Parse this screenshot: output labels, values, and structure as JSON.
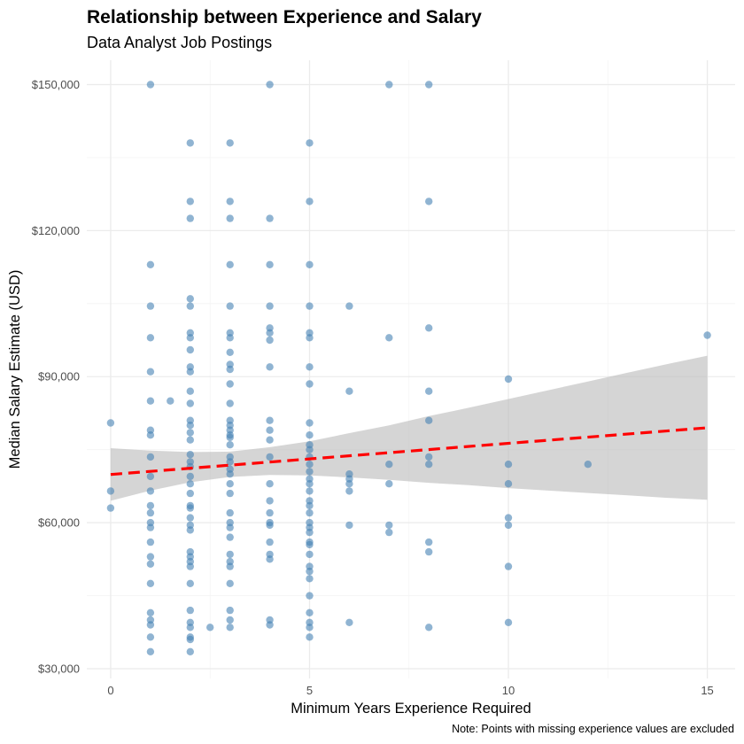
{
  "chart_data": {
    "type": "scatter",
    "title": "Relationship between Experience and Salary",
    "subtitle": "Data Analyst Job Postings",
    "xlabel": "Minimum Years Experience Required",
    "ylabel": "Median Salary Estimate (USD)",
    "caption": "Note: Points with missing experience values are excluded",
    "xlim": [
      -0.6,
      15.7
    ],
    "ylim": [
      28000,
      155000
    ],
    "x_ticks": [
      0,
      5,
      10,
      15
    ],
    "x_tick_labels": [
      "0",
      "5",
      "10",
      "15"
    ],
    "y_ticks": [
      30000,
      60000,
      90000,
      120000,
      150000
    ],
    "y_tick_labels": [
      "$30,000",
      "$60,000",
      "$90,000",
      "$120,000",
      "$150,000"
    ],
    "grid": true,
    "point_color": "#4682B4",
    "trend_color": "#FF0000",
    "band_color": "#BEBEBE",
    "trend_line": {
      "x": [
        0,
        15
      ],
      "y": [
        69900,
        79500
      ]
    },
    "confidence_band": {
      "x": [
        0,
        1,
        2,
        3,
        4,
        5,
        6,
        7,
        8,
        9,
        10,
        11,
        12,
        13,
        14,
        15
      ],
      "lower": [
        64500,
        66600,
        68300,
        69400,
        69800,
        69700,
        69300,
        68800,
        68200,
        67700,
        67100,
        66600,
        66100,
        65600,
        65100,
        64700
      ],
      "upper": [
        75300,
        74800,
        74500,
        74600,
        75500,
        76700,
        78400,
        80000,
        81900,
        83600,
        85400,
        87200,
        89000,
        90800,
        92600,
        94300
      ]
    },
    "points": [
      [
        0,
        80500
      ],
      [
        0,
        66500
      ],
      [
        0,
        63000
      ],
      [
        1,
        150000
      ],
      [
        1,
        113000
      ],
      [
        1,
        104500
      ],
      [
        1,
        98000
      ],
      [
        1,
        91000
      ],
      [
        1,
        85000
      ],
      [
        1,
        79000
      ],
      [
        1,
        78000
      ],
      [
        1,
        73500
      ],
      [
        1,
        69500
      ],
      [
        1,
        66500
      ],
      [
        1,
        63500
      ],
      [
        1,
        62000
      ],
      [
        1,
        60000
      ],
      [
        1,
        59000
      ],
      [
        1,
        56000
      ],
      [
        1,
        53000
      ],
      [
        1,
        51500
      ],
      [
        1,
        47500
      ],
      [
        1,
        41500
      ],
      [
        1,
        40000
      ],
      [
        1,
        39000
      ],
      [
        1,
        36500
      ],
      [
        1,
        33500
      ],
      [
        1.5,
        85000
      ],
      [
        2,
        138000
      ],
      [
        2,
        126000
      ],
      [
        2,
        122500
      ],
      [
        2,
        106000
      ],
      [
        2,
        104500
      ],
      [
        2,
        99000
      ],
      [
        2,
        98000
      ],
      [
        2,
        95500
      ],
      [
        2,
        92000
      ],
      [
        2,
        91000
      ],
      [
        2,
        87000
      ],
      [
        2,
        84500
      ],
      [
        2,
        81000
      ],
      [
        2,
        80000
      ],
      [
        2,
        78500
      ],
      [
        2,
        77000
      ],
      [
        2,
        74000
      ],
      [
        2,
        72500
      ],
      [
        2,
        71500
      ],
      [
        2,
        69500
      ],
      [
        2,
        68000
      ],
      [
        2,
        66000
      ],
      [
        2,
        63500
      ],
      [
        2,
        63000
      ],
      [
        2,
        61000
      ],
      [
        2,
        59500
      ],
      [
        2,
        58500
      ],
      [
        2,
        54000
      ],
      [
        2,
        53000
      ],
      [
        2,
        52000
      ],
      [
        2,
        51000
      ],
      [
        2,
        47500
      ],
      [
        2,
        42000
      ],
      [
        2,
        39500
      ],
      [
        2,
        38500
      ],
      [
        2,
        36500
      ],
      [
        2,
        36000
      ],
      [
        2,
        33500
      ],
      [
        2.5,
        38500
      ],
      [
        3,
        138000
      ],
      [
        3,
        126000
      ],
      [
        3,
        122500
      ],
      [
        3,
        113000
      ],
      [
        3,
        104500
      ],
      [
        3,
        99000
      ],
      [
        3,
        98000
      ],
      [
        3,
        95000
      ],
      [
        3,
        92500
      ],
      [
        3,
        91500
      ],
      [
        3,
        88500
      ],
      [
        3,
        84500
      ],
      [
        3,
        81000
      ],
      [
        3,
        80000
      ],
      [
        3,
        79000
      ],
      [
        3,
        78000
      ],
      [
        3,
        77500
      ],
      [
        3,
        76000
      ],
      [
        3,
        73500
      ],
      [
        3,
        72500
      ],
      [
        3,
        71000
      ],
      [
        3,
        70000
      ],
      [
        3,
        68000
      ],
      [
        3,
        66000
      ],
      [
        3,
        62000
      ],
      [
        3,
        60000
      ],
      [
        3,
        59000
      ],
      [
        3,
        57000
      ],
      [
        3,
        53500
      ],
      [
        3,
        52000
      ],
      [
        3,
        51000
      ],
      [
        3,
        47500
      ],
      [
        3,
        42000
      ],
      [
        3,
        40000
      ],
      [
        3,
        38500
      ],
      [
        4,
        150000
      ],
      [
        4,
        122500
      ],
      [
        4,
        113000
      ],
      [
        4,
        104500
      ],
      [
        4,
        100000
      ],
      [
        4,
        99000
      ],
      [
        4,
        97500
      ],
      [
        4,
        92000
      ],
      [
        4,
        81000
      ],
      [
        4,
        79000
      ],
      [
        4,
        77000
      ],
      [
        4,
        73500
      ],
      [
        4,
        68000
      ],
      [
        4,
        64500
      ],
      [
        4,
        62000
      ],
      [
        4,
        60000
      ],
      [
        4,
        59500
      ],
      [
        4,
        56000
      ],
      [
        4,
        53500
      ],
      [
        4,
        52500
      ],
      [
        4,
        40000
      ],
      [
        4,
        39000
      ],
      [
        5,
        138000
      ],
      [
        5,
        126000
      ],
      [
        5,
        113000
      ],
      [
        5,
        104500
      ],
      [
        5,
        99000
      ],
      [
        5,
        98000
      ],
      [
        5,
        92000
      ],
      [
        5,
        88500
      ],
      [
        5,
        80500
      ],
      [
        5,
        78000
      ],
      [
        5,
        76000
      ],
      [
        5,
        75000
      ],
      [
        5,
        73500
      ],
      [
        5,
        72000
      ],
      [
        5,
        70500
      ],
      [
        5,
        69000
      ],
      [
        5,
        68000
      ],
      [
        5,
        66500
      ],
      [
        5,
        64500
      ],
      [
        5,
        63500
      ],
      [
        5,
        62000
      ],
      [
        5,
        60000
      ],
      [
        5,
        59000
      ],
      [
        5,
        58000
      ],
      [
        5,
        56000
      ],
      [
        5,
        55500
      ],
      [
        5,
        53500
      ],
      [
        5,
        51000
      ],
      [
        5,
        50000
      ],
      [
        5,
        48500
      ],
      [
        5,
        45000
      ],
      [
        5,
        41500
      ],
      [
        5,
        39500
      ],
      [
        5,
        38500
      ],
      [
        5,
        36500
      ],
      [
        6,
        104500
      ],
      [
        6,
        87000
      ],
      [
        6,
        70000
      ],
      [
        6,
        69000
      ],
      [
        6,
        68000
      ],
      [
        6,
        66500
      ],
      [
        6,
        59500
      ],
      [
        6,
        39500
      ],
      [
        7,
        150000
      ],
      [
        7,
        98000
      ],
      [
        7,
        72000
      ],
      [
        7,
        68000
      ],
      [
        7,
        59500
      ],
      [
        7,
        58000
      ],
      [
        8,
        150000
      ],
      [
        8,
        126000
      ],
      [
        8,
        100000
      ],
      [
        8,
        87000
      ],
      [
        8,
        81000
      ],
      [
        8,
        73500
      ],
      [
        8,
        72000
      ],
      [
        8,
        56000
      ],
      [
        8,
        54000
      ],
      [
        8,
        38500
      ],
      [
        10,
        89500
      ],
      [
        10,
        72000
      ],
      [
        10,
        68000
      ],
      [
        10,
        61000
      ],
      [
        10,
        59500
      ],
      [
        10,
        51000
      ],
      [
        10,
        39500
      ],
      [
        12,
        72000
      ],
      [
        15,
        98500
      ]
    ]
  }
}
